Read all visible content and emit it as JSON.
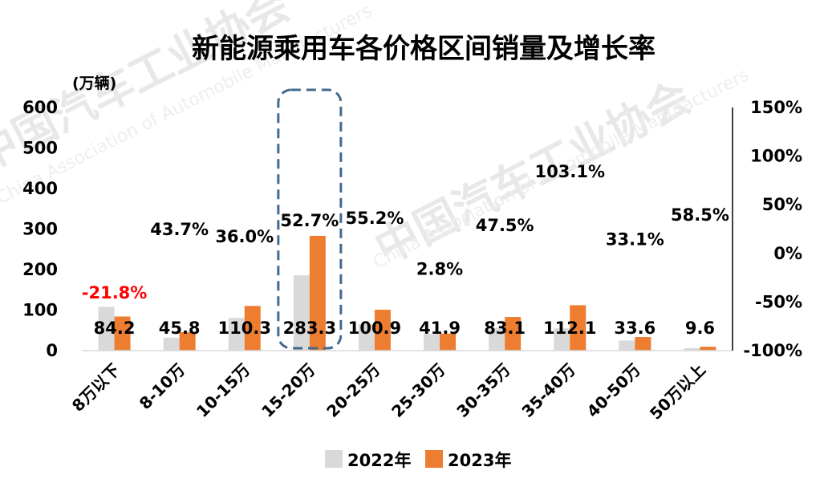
{
  "watermark": {
    "cn": "中国汽车工业协会",
    "en": "China Association of Automobile Manufacturers"
  },
  "chart_data": {
    "type": "bar",
    "title": "新能源乘用车各价格区间销量及增长率",
    "unit_label": "(万辆)",
    "categories": [
      "8万以下",
      "8-10万",
      "10-15万",
      "15-20万",
      "20-25万",
      "25-30万",
      "30-35万",
      "35-40万",
      "40-50万",
      "50万以上"
    ],
    "series": [
      {
        "name": "2022年",
        "values": [
          108,
          32,
          81,
          186,
          65,
          41,
          56,
          55,
          25,
          6
        ],
        "color": "#d9d9d9"
      },
      {
        "name": "2023年",
        "values": [
          84.2,
          45.8,
          110.3,
          283.3,
          100.9,
          41.9,
          83.1,
          112.1,
          33.6,
          9.6
        ],
        "color": "#ed7d31"
      }
    ],
    "value_labels": [
      "84.2",
      "45.8",
      "110.3",
      "283.3",
      "100.9",
      "41.9",
      "83.1",
      "112.1",
      "33.6",
      "9.6"
    ],
    "growth": [
      -21.8,
      43.7,
      36.0,
      52.7,
      55.2,
      2.8,
      47.5,
      103.1,
      33.1,
      58.5
    ],
    "growth_labels": [
      "-21.8%",
      "43.7%",
      "36.0%",
      "52.7%",
      "55.2%",
      "2.8%",
      "47.5%",
      "103.1%",
      "33.1%",
      "58.5%"
    ],
    "y_left": {
      "ylim": [
        0,
        600
      ],
      "ticks": [
        "0",
        "100",
        "200",
        "300",
        "400",
        "500",
        "600"
      ]
    },
    "y_right": {
      "ylim": [
        -100,
        150
      ],
      "ticks": [
        "-100%",
        "-50%",
        "0%",
        "50%",
        "100%",
        "150%"
      ]
    },
    "highlight_category": "15-20万",
    "negative_color": "#ff0000",
    "legend_position": "bottom",
    "grid": false
  }
}
